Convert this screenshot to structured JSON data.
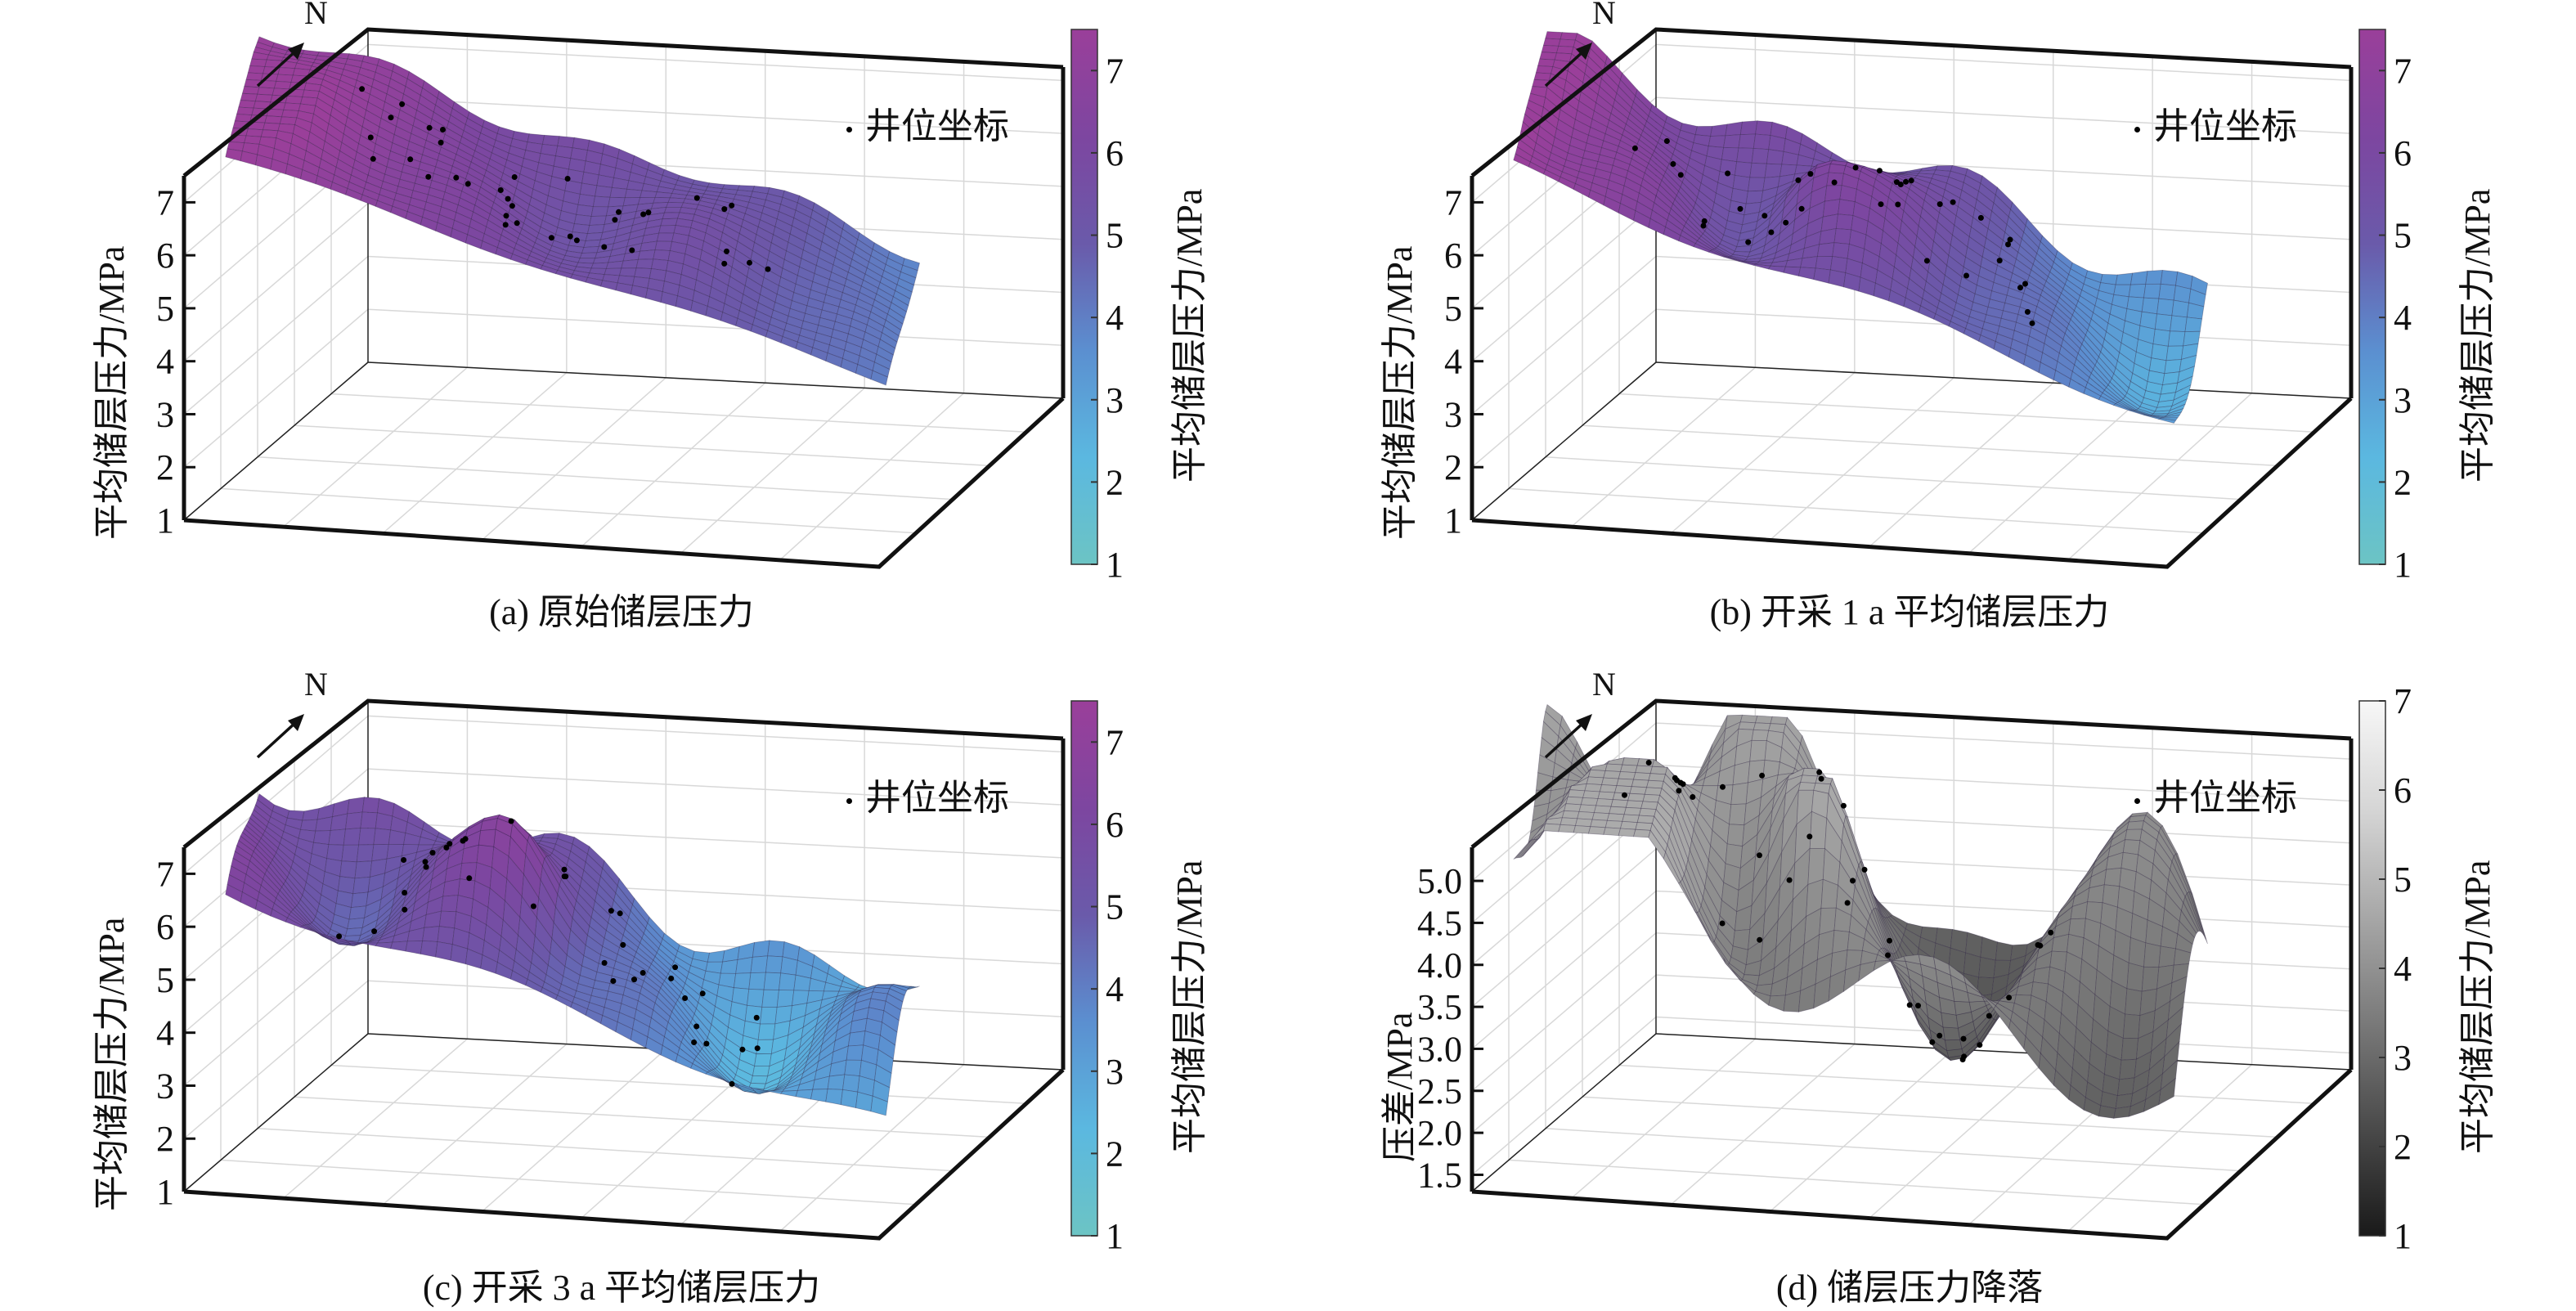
{
  "chart_data": [
    {
      "type": "surface3d",
      "id": "a",
      "title": "(a) 原始储层压力",
      "zlabel": "平均储层压力/MPa",
      "zticks": [
        "1",
        "2",
        "3",
        "4",
        "5",
        "6",
        "7"
      ],
      "zlim": [
        1,
        7.5
      ],
      "colorbar": {
        "label": "平均储层压力/MPa",
        "ticks": [
          "1",
          "2",
          "3",
          "4",
          "5",
          "6",
          "7"
        ],
        "range": [
          1,
          7.5
        ],
        "colormap": "cyan-blue-purple-magenta"
      },
      "legend": "井位坐标",
      "north_label": "N",
      "surface_profile": {
        "start": 7.4,
        "end": 4.0,
        "ridge_amplitude": 0.4
      },
      "wells": 36
    },
    {
      "type": "surface3d",
      "id": "b",
      "title": "(b) 开采 1 a 平均储层压力",
      "zlabel": "平均储层压力/MPa",
      "zticks": [
        "1",
        "2",
        "3",
        "4",
        "5",
        "6",
        "7"
      ],
      "zlim": [
        1,
        7.5
      ],
      "colorbar": {
        "label": "平均储层压力/MPa",
        "ticks": [
          "1",
          "2",
          "3",
          "4",
          "5",
          "6",
          "7"
        ],
        "range": [
          1,
          7.5
        ],
        "colormap": "cyan-blue-purple-magenta"
      },
      "legend": "井位坐标",
      "north_label": "N",
      "surface_profile": {
        "start": 7.2,
        "end": 3.3,
        "ridge_amplitude": 0.8
      },
      "wells": 36
    },
    {
      "type": "surface3d",
      "id": "c",
      "title": "(c) 开采 3 a 平均储层压力",
      "zlabel": "平均储层压力/MPa",
      "zticks": [
        "1",
        "2",
        "3",
        "4",
        "5",
        "6",
        "7"
      ],
      "zlim": [
        1,
        7.5
      ],
      "colorbar": {
        "label": "平均储层压力/MPa",
        "ticks": [
          "1",
          "2",
          "3",
          "4",
          "5",
          "6",
          "7"
        ],
        "range": [
          1,
          7.5
        ],
        "colormap": "cyan-blue-purple-magenta"
      },
      "legend": "井位坐标",
      "north_label": "N",
      "surface_profile": {
        "start": 6.3,
        "end": 2.6,
        "ridge_amplitude": 1.0
      },
      "wells": 36
    },
    {
      "type": "surface3d",
      "id": "d",
      "title": "(d) 储层压力降落",
      "zlabel": "压差/MPa",
      "zticks": [
        "1.5",
        "2.0",
        "2.5",
        "3.0",
        "3.5",
        "4.0",
        "4.5",
        "5.0"
      ],
      "zlim": [
        1.3,
        5.4
      ],
      "colorbar": {
        "label": "平均储层压力/MPa",
        "ticks": [
          "1",
          "2",
          "3",
          "4",
          "5",
          "6",
          "7"
        ],
        "range": [
          1,
          7
        ],
        "colormap": "gray"
      },
      "legend": "井位坐标",
      "north_label": "N",
      "surface_profile": {
        "start": 5.2,
        "end": 2.6,
        "ridge_amplitude": 1.2
      },
      "wells": 36
    }
  ],
  "colors": {
    "cmap_purple": [
      "#6cc4c4",
      "#5bb8e0",
      "#5b8fd0",
      "#6a5aaa",
      "#7d46a0",
      "#9a3f9a"
    ],
    "cmap_gray": [
      "#1a1a1a",
      "#4a4a4a",
      "#7a7a7a",
      "#a8a8a8",
      "#d6d6d6",
      "#f7f7f7"
    ],
    "axis": "#111111",
    "grid": "#d8d8d8"
  }
}
